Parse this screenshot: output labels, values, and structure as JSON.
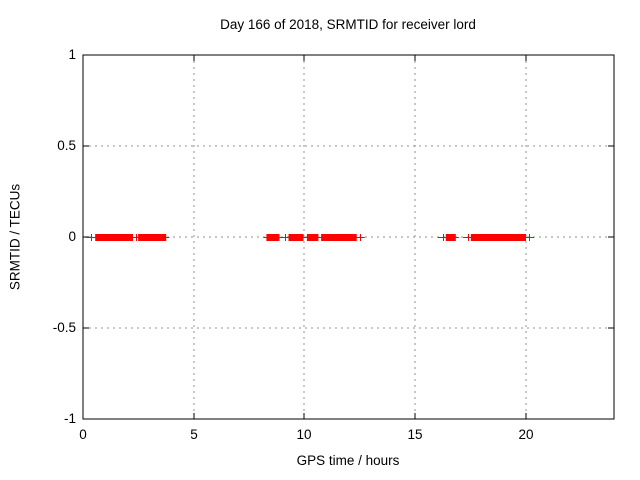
{
  "window": {
    "background": "#ffffff",
    "foreground": "#000000"
  },
  "chart_data": {
    "type": "scatter",
    "title": "Day 166 of 2018, SRMTID for receiver lord",
    "xlabel": "GPS time / hours",
    "ylabel": "SRMTID / TECUs",
    "xlim": [
      0,
      24
    ],
    "ylim": [
      -1,
      1
    ],
    "xticks": [
      0,
      5,
      10,
      15,
      20
    ],
    "yticks": [
      -1,
      -0.5,
      0,
      0.5,
      1
    ],
    "grid": true,
    "legend": "none",
    "marker": "plus",
    "marker_color": "#ff0000",
    "grid_color": "#909090",
    "border_color": "#000000",
    "series": [
      {
        "name": "SRMTID",
        "y_value": 0,
        "segments_x_hours": [
          [
            0.28,
            0.4
          ],
          [
            0.55,
            2.26
          ],
          [
            2.31,
            2.44
          ],
          [
            2.49,
            3.76
          ],
          [
            8.29,
            8.88
          ],
          [
            9.06,
            9.24
          ],
          [
            9.29,
            9.97
          ],
          [
            10.12,
            10.64
          ],
          [
            10.76,
            12.37
          ],
          [
            12.42,
            12.6
          ],
          [
            16.17,
            16.35
          ],
          [
            16.4,
            16.85
          ],
          [
            17.31,
            17.49
          ],
          [
            17.53,
            20.02
          ],
          [
            20.07,
            20.25
          ]
        ]
      }
    ]
  }
}
